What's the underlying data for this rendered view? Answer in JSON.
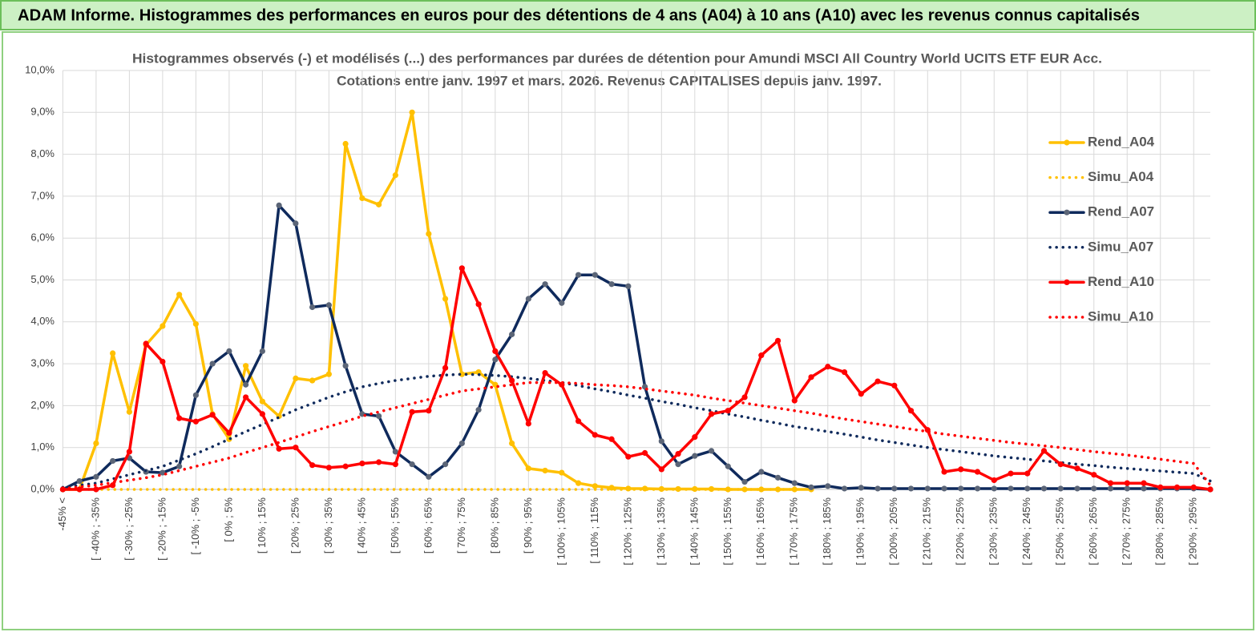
{
  "header": {
    "title": "ADAM Informe. Histogrammes des performances en euros pour des détentions de 4 ans (A04) à 10 ans (A10) avec les revenus connus capitalisés"
  },
  "chart_data": {
    "type": "line",
    "title": "Histogrammes observés (-) et modélisés (...) des performances par durées de détention pour Amundi MSCI All Country World UCITS ETF EUR Acc.",
    "subtitle": "Cotations entre janv. 1997 et mars. 2026. Revenus CAPITALISES depuis janv. 1997.",
    "categories": [
      "-45% <",
      null,
      "[ -40% ; -35%",
      null,
      "[ -30% ; -25%",
      null,
      "[ -20% ; -15%",
      null,
      "[ -10% ; -5%",
      null,
      "[ 0% ; 5%",
      null,
      "[ 10% ; 15%",
      null,
      "[ 20% ; 25%",
      null,
      "[ 30% ; 35%",
      null,
      "[ 40% ; 45%",
      null,
      "[ 50% ; 55%",
      null,
      "[ 60% ; 65%",
      null,
      "[ 70% ; 75%",
      null,
      "[ 80% ; 85%",
      null,
      "[ 90% ; 95%",
      null,
      "[ 100% ; 105%",
      null,
      "[ 110% ; 115%",
      null,
      "[ 120% ; 125%",
      null,
      "[ 130% ; 135%",
      null,
      "[ 140% ; 145%",
      null,
      "[ 150% ; 155%",
      null,
      "[ 160% ; 165%",
      null,
      "[ 170% ; 175%",
      null,
      "[ 180% ; 185%",
      null,
      "[ 190% ; 195%",
      null,
      "[ 200% ; 205%",
      null,
      "[ 210% ; 215%",
      null,
      "[ 220% ; 225%",
      null,
      "[ 230% ; 235%",
      null,
      "[ 240% ; 245%",
      null,
      "[ 250% ; 255%",
      null,
      "[ 260% ; 265%",
      null,
      "[ 270% ; 275%",
      null,
      "[ 280% ; 285%",
      null,
      "[ 290% ; 295%",
      null
    ],
    "series": [
      {
        "name": "Rend_A04",
        "color": "#ffc000",
        "marker_color": "#ffc000",
        "line_style": "solid",
        "marker": true,
        "values": [
          0,
          0,
          1.1,
          3.25,
          1.85,
          3.45,
          3.9,
          4.65,
          3.95,
          1.8,
          1.2,
          2.95,
          2.1,
          1.75,
          2.65,
          2.6,
          2.75,
          8.25,
          6.95,
          6.8,
          7.5,
          9.0,
          6.1,
          4.55,
          2.75,
          2.8,
          2.5,
          1.1,
          0.5,
          0.45,
          0.4,
          0.15,
          0.08,
          0.04,
          0.02,
          0.02,
          0.01,
          0.01,
          0.01,
          0.01,
          0,
          0,
          0,
          0,
          0,
          0,
          null,
          null,
          null,
          null,
          null,
          null,
          null,
          null,
          null,
          null,
          null,
          null,
          null,
          null,
          null,
          null,
          null,
          null,
          null,
          null,
          null,
          null,
          null,
          null
        ]
      },
      {
        "name": "Simu_A04",
        "color": "#ffc000",
        "line_style": "dotted",
        "marker": false,
        "values": [
          0,
          0,
          0,
          0,
          0,
          0,
          0,
          0,
          0,
          0,
          0,
          0,
          0,
          0,
          0,
          0,
          0,
          0,
          0,
          0,
          0,
          0,
          0,
          0,
          0,
          0,
          0,
          0,
          0,
          0,
          0,
          0,
          0,
          0,
          0,
          0,
          0,
          0,
          0,
          0,
          0,
          0,
          0,
          0,
          0,
          null,
          null,
          null,
          null,
          null,
          null,
          null,
          null,
          null,
          null,
          null,
          null,
          null,
          null,
          null,
          null,
          null,
          null,
          null,
          null,
          null,
          null,
          null,
          null,
          null
        ]
      },
      {
        "name": "Rend_A07",
        "color": "#0f2a5c",
        "marker_color": "#5b6577",
        "line_style": "solid",
        "marker": true,
        "values": [
          0,
          0.2,
          0.3,
          0.68,
          0.75,
          0.42,
          0.4,
          0.55,
          2.25,
          3.0,
          3.3,
          2.5,
          3.3,
          6.78,
          6.35,
          4.35,
          4.4,
          2.95,
          1.8,
          1.75,
          0.9,
          0.6,
          0.3,
          0.6,
          1.1,
          1.9,
          3.1,
          3.7,
          4.55,
          4.9,
          4.45,
          5.12,
          5.12,
          4.9,
          4.85,
          2.45,
          1.15,
          0.6,
          0.8,
          0.92,
          0.55,
          0.18,
          0.42,
          0.28,
          0.15,
          0.05,
          0.08,
          0.02,
          0.04,
          0.02,
          0.02,
          0.02,
          0.02,
          0.02,
          0.02,
          0.02,
          0.02,
          0.02,
          0.02,
          0.02,
          0.02,
          0.02,
          0.02,
          0.02,
          0.02,
          0.02,
          0.02,
          0.02,
          0.02,
          0
        ]
      },
      {
        "name": "Simu_A07",
        "color": "#0f2a5c",
        "line_style": "dotted",
        "marker": false,
        "values": [
          0.05,
          0.1,
          0.15,
          0.25,
          0.35,
          0.45,
          0.55,
          0.7,
          0.85,
          1.02,
          1.2,
          1.38,
          1.55,
          1.72,
          1.9,
          2.05,
          2.2,
          2.33,
          2.45,
          2.53,
          2.6,
          2.65,
          2.7,
          2.73,
          2.75,
          2.74,
          2.72,
          2.69,
          2.65,
          2.6,
          2.55,
          2.48,
          2.4,
          2.33,
          2.25,
          2.18,
          2.1,
          2.03,
          1.95,
          1.88,
          1.8,
          1.73,
          1.65,
          1.58,
          1.5,
          1.44,
          1.38,
          1.32,
          1.25,
          1.18,
          1.12,
          1.06,
          1.0,
          0.95,
          0.9,
          0.85,
          0.8,
          0.76,
          0.72,
          0.68,
          0.64,
          0.6,
          0.57,
          0.53,
          0.5,
          0.47,
          0.44,
          0.41,
          0.38,
          0.2
        ]
      },
      {
        "name": "Rend_A10",
        "color": "#ff0000",
        "marker_color": "#ff0000",
        "line_style": "solid",
        "marker": true,
        "values": [
          0,
          0,
          0,
          0.1,
          0.9,
          3.48,
          3.05,
          1.7,
          1.62,
          1.78,
          1.35,
          2.2,
          1.8,
          0.97,
          1.0,
          0.58,
          0.52,
          0.55,
          0.62,
          0.65,
          0.6,
          1.85,
          1.88,
          2.9,
          5.28,
          4.42,
          3.3,
          2.6,
          1.57,
          2.78,
          2.5,
          1.63,
          1.3,
          1.2,
          0.78,
          0.87,
          0.48,
          0.85,
          1.25,
          1.8,
          1.88,
          2.2,
          3.2,
          3.55,
          2.12,
          2.68,
          2.93,
          2.8,
          2.28,
          2.58,
          2.48,
          1.88,
          1.42,
          0.42,
          0.48,
          0.42,
          0.22,
          0.38,
          0.38,
          0.92,
          0.6,
          0.5,
          0.35,
          0.15,
          0.15,
          0.15,
          0.05,
          0.05,
          0.05,
          0
        ]
      },
      {
        "name": "Simu_A10",
        "color": "#ff0000",
        "line_style": "dotted",
        "marker": false,
        "values": [
          0.02,
          0.06,
          0.1,
          0.16,
          0.22,
          0.28,
          0.35,
          0.45,
          0.55,
          0.65,
          0.75,
          0.88,
          1.0,
          1.12,
          1.25,
          1.38,
          1.5,
          1.62,
          1.75,
          1.85,
          1.95,
          2.05,
          2.15,
          2.25,
          2.35,
          2.4,
          2.45,
          2.5,
          2.55,
          2.55,
          2.55,
          2.53,
          2.5,
          2.48,
          2.45,
          2.4,
          2.35,
          2.3,
          2.25,
          2.18,
          2.12,
          2.06,
          2.0,
          1.94,
          1.88,
          1.82,
          1.75,
          1.68,
          1.62,
          1.56,
          1.5,
          1.44,
          1.38,
          1.32,
          1.27,
          1.22,
          1.17,
          1.12,
          1.08,
          1.04,
          1.0,
          0.95,
          0.9,
          0.86,
          0.82,
          0.77,
          0.72,
          0.67,
          0.62,
          0.1
        ]
      }
    ],
    "ylim": [
      0,
      10
    ],
    "yticks": [
      {
        "value": 0,
        "label": "0,0%"
      },
      {
        "value": 1,
        "label": "1,0%"
      },
      {
        "value": 2,
        "label": "2,0%"
      },
      {
        "value": 3,
        "label": "3,0%"
      },
      {
        "value": 4,
        "label": "4,0%"
      },
      {
        "value": 5,
        "label": "5,0%"
      },
      {
        "value": 6,
        "label": "6,0%"
      },
      {
        "value": 7,
        "label": "7,0%"
      },
      {
        "value": 8,
        "label": "8,0%"
      },
      {
        "value": 9,
        "label": "9,0%"
      },
      {
        "value": 10,
        "label": "10,0%"
      }
    ],
    "grid": true,
    "legend": "right"
  }
}
